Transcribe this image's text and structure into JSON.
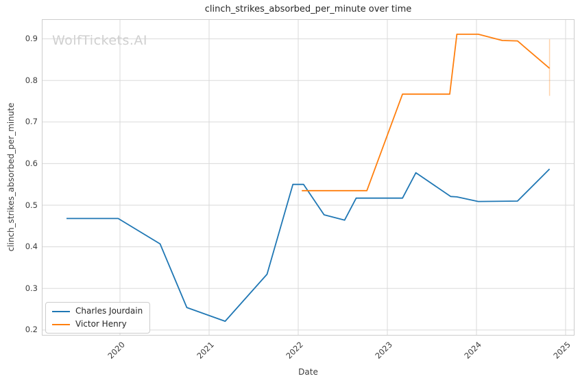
{
  "chart_data": {
    "type": "line",
    "title": "clinch_strikes_absorbed_per_minute over time",
    "xlabel": "Date",
    "ylabel": "clinch_strikes_absorbed_per_minute",
    "watermark": "WolfTickets.AI",
    "grid": true,
    "legend_position": "lower-left",
    "xlim": [
      2019.123,
      2025.1
    ],
    "ylim": [
      0.1865,
      0.9472
    ],
    "x_ticks": [
      {
        "v": 2020,
        "label": "2020"
      },
      {
        "v": 2021,
        "label": "2021"
      },
      {
        "v": 2022,
        "label": "2022"
      },
      {
        "v": 2023,
        "label": "2023"
      },
      {
        "v": 2024,
        "label": "2024"
      },
      {
        "v": 2025,
        "label": "2025"
      }
    ],
    "y_ticks": [
      {
        "v": 0.2,
        "label": "0.2"
      },
      {
        "v": 0.3,
        "label": "0.3"
      },
      {
        "v": 0.4,
        "label": "0.4"
      },
      {
        "v": 0.5,
        "label": "0.5"
      },
      {
        "v": 0.6,
        "label": "0.6"
      },
      {
        "v": 0.7,
        "label": "0.7"
      },
      {
        "v": 0.8,
        "label": "0.8"
      },
      {
        "v": 0.9,
        "label": "0.9"
      }
    ],
    "series": [
      {
        "name": "Charles Jourdain",
        "color": "#1f77b4",
        "points": [
          [
            2019.4,
            0.468
          ],
          [
            2019.98,
            0.468
          ],
          [
            2020.45,
            0.407
          ],
          [
            2020.75,
            0.254
          ],
          [
            2021.18,
            0.221
          ],
          [
            2021.65,
            0.334
          ],
          [
            2021.94,
            0.55
          ],
          [
            2022.06,
            0.55
          ],
          [
            2022.29,
            0.477
          ],
          [
            2022.52,
            0.464
          ],
          [
            2022.65,
            0.517
          ],
          [
            2023.17,
            0.517
          ],
          [
            2023.32,
            0.578
          ],
          [
            2023.71,
            0.521
          ],
          [
            2023.78,
            0.52
          ],
          [
            2024.02,
            0.509
          ],
          [
            2024.46,
            0.51
          ],
          [
            2024.82,
            0.587
          ]
        ],
        "error_bars": []
      },
      {
        "name": "Victor Henry",
        "color": "#ff7f0e",
        "points": [
          [
            2022.04,
            0.535
          ],
          [
            2022.77,
            0.535
          ],
          [
            2023.17,
            0.767
          ],
          [
            2023.7,
            0.767
          ],
          [
            2023.78,
            0.911
          ],
          [
            2024.02,
            0.911
          ],
          [
            2024.29,
            0.896
          ],
          [
            2024.46,
            0.895
          ],
          [
            2024.82,
            0.829
          ]
        ],
        "error_bars": [
          {
            "x": 2024.82,
            "low": 0.763,
            "high": 0.899
          }
        ]
      }
    ],
    "style": {
      "grid_color": "#dadada",
      "spine_color": "#cccccc",
      "line_width": 1.8,
      "error_bar_opacity": 0.35
    }
  }
}
